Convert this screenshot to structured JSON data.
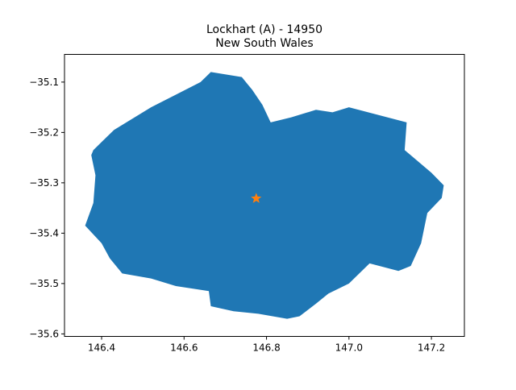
{
  "chart_data": {
    "type": "map",
    "title": "Lockhart (A) - 14950",
    "subtitle": "New South Wales",
    "xlim": [
      146.31,
      147.28
    ],
    "ylim": [
      -35.605,
      -35.045
    ],
    "x_ticks": [
      146.4,
      146.6,
      146.8,
      147.0,
      147.2
    ],
    "x_tick_labels": [
      "146.4",
      "146.6",
      "146.8",
      "147.0",
      "147.2"
    ],
    "y_ticks": [
      -35.1,
      -35.2,
      -35.3,
      -35.4,
      -35.5,
      -35.6
    ],
    "y_tick_labels": [
      "−35.1",
      "−35.2",
      "−35.3",
      "−35.4",
      "−35.5",
      "−35.6"
    ],
    "region_color": "#1f77b4",
    "marker_color": "#ff7f0e",
    "marker": {
      "symbol": "star",
      "lon": 146.775,
      "lat": -35.331
    },
    "boundary": [
      [
        146.38,
        -35.235
      ],
      [
        146.43,
        -35.195
      ],
      [
        146.52,
        -35.15
      ],
      [
        146.58,
        -35.125
      ],
      [
        146.64,
        -35.1
      ],
      [
        146.665,
        -35.08
      ],
      [
        146.74,
        -35.09
      ],
      [
        146.755,
        -35.105
      ],
      [
        146.765,
        -35.115
      ],
      [
        146.79,
        -35.145
      ],
      [
        146.81,
        -35.18
      ],
      [
        146.86,
        -35.17
      ],
      [
        146.92,
        -35.155
      ],
      [
        146.96,
        -35.16
      ],
      [
        147.0,
        -35.15
      ],
      [
        147.14,
        -35.18
      ],
      [
        147.135,
        -35.235
      ],
      [
        147.2,
        -35.28
      ],
      [
        147.23,
        -35.305
      ],
      [
        147.225,
        -35.33
      ],
      [
        147.19,
        -35.36
      ],
      [
        147.175,
        -35.42
      ],
      [
        147.15,
        -35.465
      ],
      [
        147.12,
        -35.475
      ],
      [
        147.05,
        -35.46
      ],
      [
        147.0,
        -35.5
      ],
      [
        146.95,
        -35.52
      ],
      [
        146.92,
        -35.54
      ],
      [
        146.88,
        -35.565
      ],
      [
        146.85,
        -35.57
      ],
      [
        146.78,
        -35.56
      ],
      [
        146.72,
        -35.555
      ],
      [
        146.665,
        -35.545
      ],
      [
        146.66,
        -35.515
      ],
      [
        146.58,
        -35.505
      ],
      [
        146.52,
        -35.49
      ],
      [
        146.45,
        -35.48
      ],
      [
        146.42,
        -35.45
      ],
      [
        146.4,
        -35.42
      ],
      [
        146.36,
        -35.385
      ],
      [
        146.38,
        -35.34
      ],
      [
        146.385,
        -35.285
      ],
      [
        146.375,
        -35.245
      ]
    ]
  }
}
